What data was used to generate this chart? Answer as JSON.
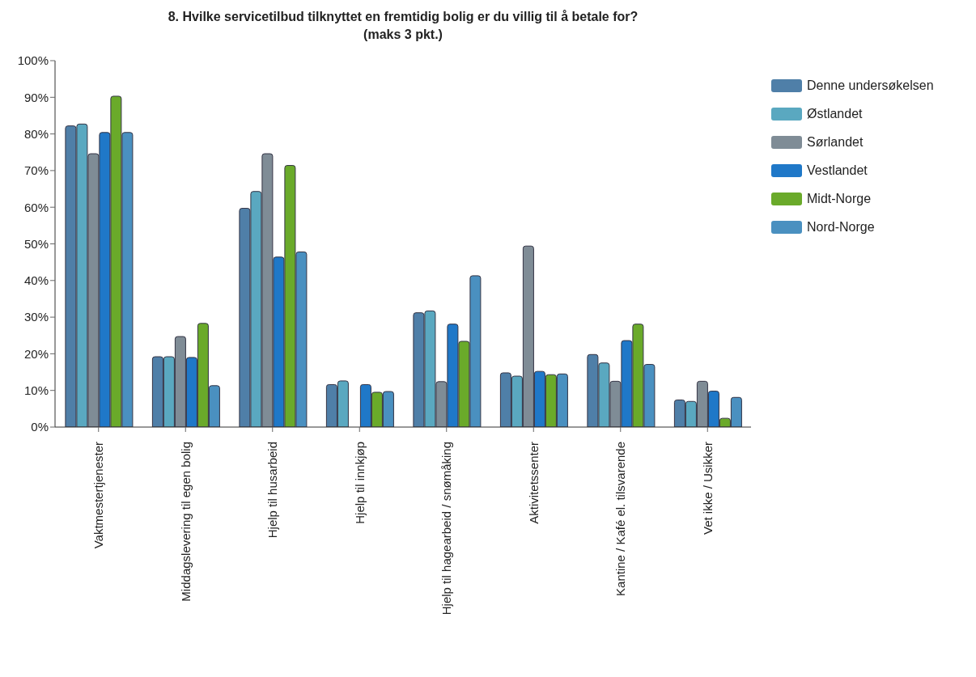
{
  "chart_data": {
    "type": "bar",
    "title": "8. Hvilke servicetilbud tilknyttet en fremtidig bolig er du villig til å betale for?\n(maks 3 pkt.)",
    "categories": [
      "Vaktmestertjenester",
      "Middagslevering til egen bolig",
      "Hjelp til husarbeid",
      "Hjelp til innkjøp",
      "Hjelp til hagearbeid / snømåking",
      "Aktivitetssenter",
      "Kantine  / Kafé el. tilsvarende",
      "Vet ikke / Usikker"
    ],
    "series": [
      {
        "name": "Denne undersøkelsen",
        "color": "#4f7fa8",
        "values": [
          82.2,
          19.2,
          59.7,
          11.6,
          31.2,
          14.8,
          19.8,
          7.4
        ]
      },
      {
        "name": "Østlandet",
        "color": "#5aa8c0",
        "values": [
          82.7,
          19.2,
          64.3,
          12.6,
          31.7,
          13.9,
          17.5,
          7
        ]
      },
      {
        "name": "Sørlandet",
        "color": "#7f8c96",
        "values": [
          74.6,
          24.7,
          74.6,
          0,
          12.4,
          49.4,
          12.5,
          12.5
        ]
      },
      {
        "name": "Vestlandet",
        "color": "#1f78c8",
        "values": [
          80.4,
          19.0,
          46.4,
          11.6,
          28.1,
          15.2,
          23.6,
          9.8
        ]
      },
      {
        "name": "Midt-Norge",
        "color": "#6aaa2a",
        "values": [
          90.3,
          28.3,
          71.4,
          9.5,
          23.4,
          14.3,
          28.1,
          2.4
        ]
      },
      {
        "name": "Nord-Norge",
        "color": "#4a90c0",
        "values": [
          80.4,
          11.3,
          47.8,
          9.7,
          41.3,
          14.5,
          17.1,
          8.1
        ]
      }
    ],
    "ylim": [
      0,
      100
    ],
    "yticks": [
      {
        "value": 0,
        "label": "0%"
      },
      {
        "value": 10,
        "label": "10%"
      },
      {
        "value": 20,
        "label": "20%"
      },
      {
        "value": 30,
        "label": "30%"
      },
      {
        "value": 40,
        "label": "40%"
      },
      {
        "value": 50,
        "label": "50%"
      },
      {
        "value": 60,
        "label": "60%"
      },
      {
        "value": 70,
        "label": "70%"
      },
      {
        "value": 80,
        "label": "80%"
      },
      {
        "value": 90,
        "label": "90%"
      },
      {
        "value": 100,
        "label": "100%"
      }
    ],
    "legend": "right",
    "grid": false
  }
}
